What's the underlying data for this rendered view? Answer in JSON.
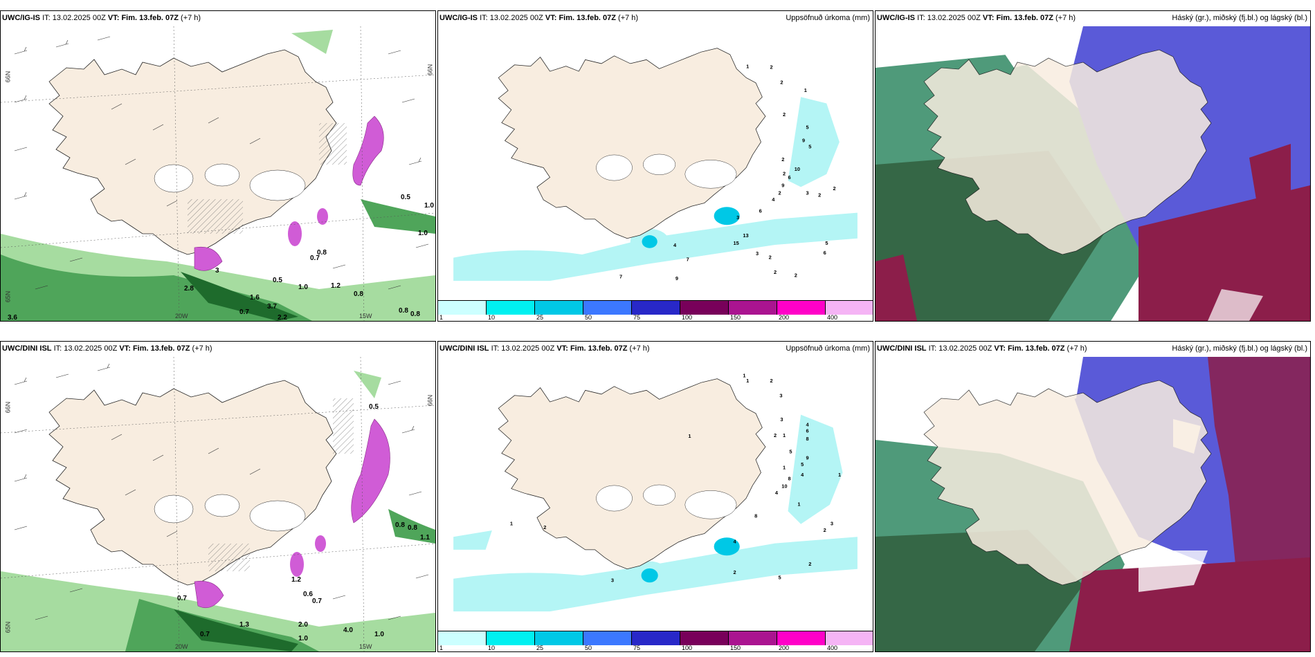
{
  "panels": [
    {
      "id": "p1",
      "model": "UWC/IG-IS",
      "it_label": "IT:",
      "it": "13.02.2025 00Z",
      "vt_label": "VT:",
      "vt": "Fim. 13.feb. 07Z",
      "lead": "(+7 h)",
      "right_title": "",
      "type": "wind",
      "axis": {
        "lat": "66N",
        "lon1": "20W",
        "lon2": "15W",
        "lat_right": "66N",
        "lat_low": "65N"
      }
    },
    {
      "id": "p2",
      "model": "UWC/IG-IS",
      "it_label": "IT:",
      "it": "13.02.2025 00Z",
      "vt_label": "VT:",
      "vt": "Fim. 13.feb. 07Z",
      "lead": "(+7 h)",
      "right_title": "Uppsöfnuð úrkoma (mm)",
      "type": "precip"
    },
    {
      "id": "p3",
      "model": "UWC/IG-IS",
      "it_label": "IT:",
      "it": "13.02.2025 00Z",
      "vt_label": "VT:",
      "vt": "Fim. 13.feb. 07Z",
      "lead": "(+7 h)",
      "right_title": "Háský (gr.), miðský (fj.bl.) og lágský (bl.)",
      "type": "cloud"
    },
    {
      "id": "p4",
      "model": "UWC/DINI ISL",
      "it_label": "IT:",
      "it": "13.02.2025 00Z",
      "vt_label": "VT:",
      "vt": "Fim. 13.feb. 07Z",
      "lead": "(+7 h)",
      "right_title": "",
      "type": "wind",
      "axis": {
        "lat": "66N",
        "lon1": "20W",
        "lon2": "15W",
        "lat_right": "66N",
        "lat_low": "65N"
      }
    },
    {
      "id": "p5",
      "model": "UWC/DINI ISL",
      "it_label": "IT:",
      "it": "13.02.2025 00Z",
      "vt_label": "VT:",
      "vt": "Fim. 13.feb. 07Z",
      "lead": "(+7 h)",
      "right_title": "Uppsöfnuð úrkoma (mm)",
      "type": "precip"
    },
    {
      "id": "p6",
      "model": "UWC/DINI ISL",
      "it_label": "IT:",
      "it": "13.02.2025 00Z",
      "vt_label": "VT:",
      "vt": "Fim. 13.feb. 07Z",
      "lead": "(+7 h)",
      "right_title": "Háský (gr.), miðský (fj.bl.) og lágský (bl.)",
      "type": "cloud"
    }
  ],
  "precip_legend": {
    "labels": [
      "1",
      "10",
      "25",
      "50",
      "75",
      "100",
      "150",
      "200",
      "400"
    ],
    "colors": [
      "#ccffff",
      "#00f0f0",
      "#00c8e6",
      "#3c78ff",
      "#2828c8",
      "#78005a",
      "#aa1490",
      "#ff00c8",
      "#f5b4f5"
    ]
  },
  "wind_values_top": [
    "0.5",
    "1.0",
    "1.0",
    "0.7",
    "0.8",
    "0.5",
    "1.0",
    "1.2",
    "0.8",
    "2.8",
    "3",
    "0.7",
    "3.7",
    "2.2",
    "0.8",
    "0.8",
    "3.6",
    "1.6"
  ],
  "wind_values_bottom": [
    "0.5",
    "0.8",
    "0.8",
    "1.1",
    "1.2",
    "0.6",
    "0.7",
    "0.7",
    "0.7",
    "2.0",
    "1.0",
    "4.0",
    "1.0",
    "1.3"
  ],
  "precip_values_top": [
    "1",
    "2",
    "2",
    "1",
    "2",
    "5",
    "2",
    "9",
    "5",
    "2",
    "6",
    "10",
    "2",
    "4",
    "9",
    "2",
    "6",
    "3",
    "2",
    "3",
    "13",
    "15",
    "4",
    "7",
    "3",
    "2",
    "5",
    "6",
    "2",
    "2",
    "7",
    "9"
  ],
  "precip_values_bottom": [
    "1",
    "2",
    "1",
    "3",
    "3",
    "4",
    "6",
    "2",
    "1",
    "8",
    "5",
    "9",
    "5",
    "4",
    "8",
    "1",
    "1",
    "10",
    "4",
    "8",
    "1",
    "2",
    "4",
    "3",
    "2",
    "2",
    "1",
    "2",
    "5",
    "3",
    "1"
  ],
  "colors": {
    "land": "#f8ede0",
    "ocean": "#ffffff",
    "green_dark": "#1e6b2c",
    "green_mid": "#4fa55a",
    "green_light": "#a6dca0",
    "violet": "#d05cd6",
    "hatch": "#808080",
    "cyan": "#b4f5f5",
    "cloud_green": "#4f9a7a",
    "cloud_dark": "#2e5a3a",
    "cloud_blue": "#5a5ad8",
    "cloud_maroon": "#8c1e4a",
    "cloud_white": "#ffffff"
  }
}
